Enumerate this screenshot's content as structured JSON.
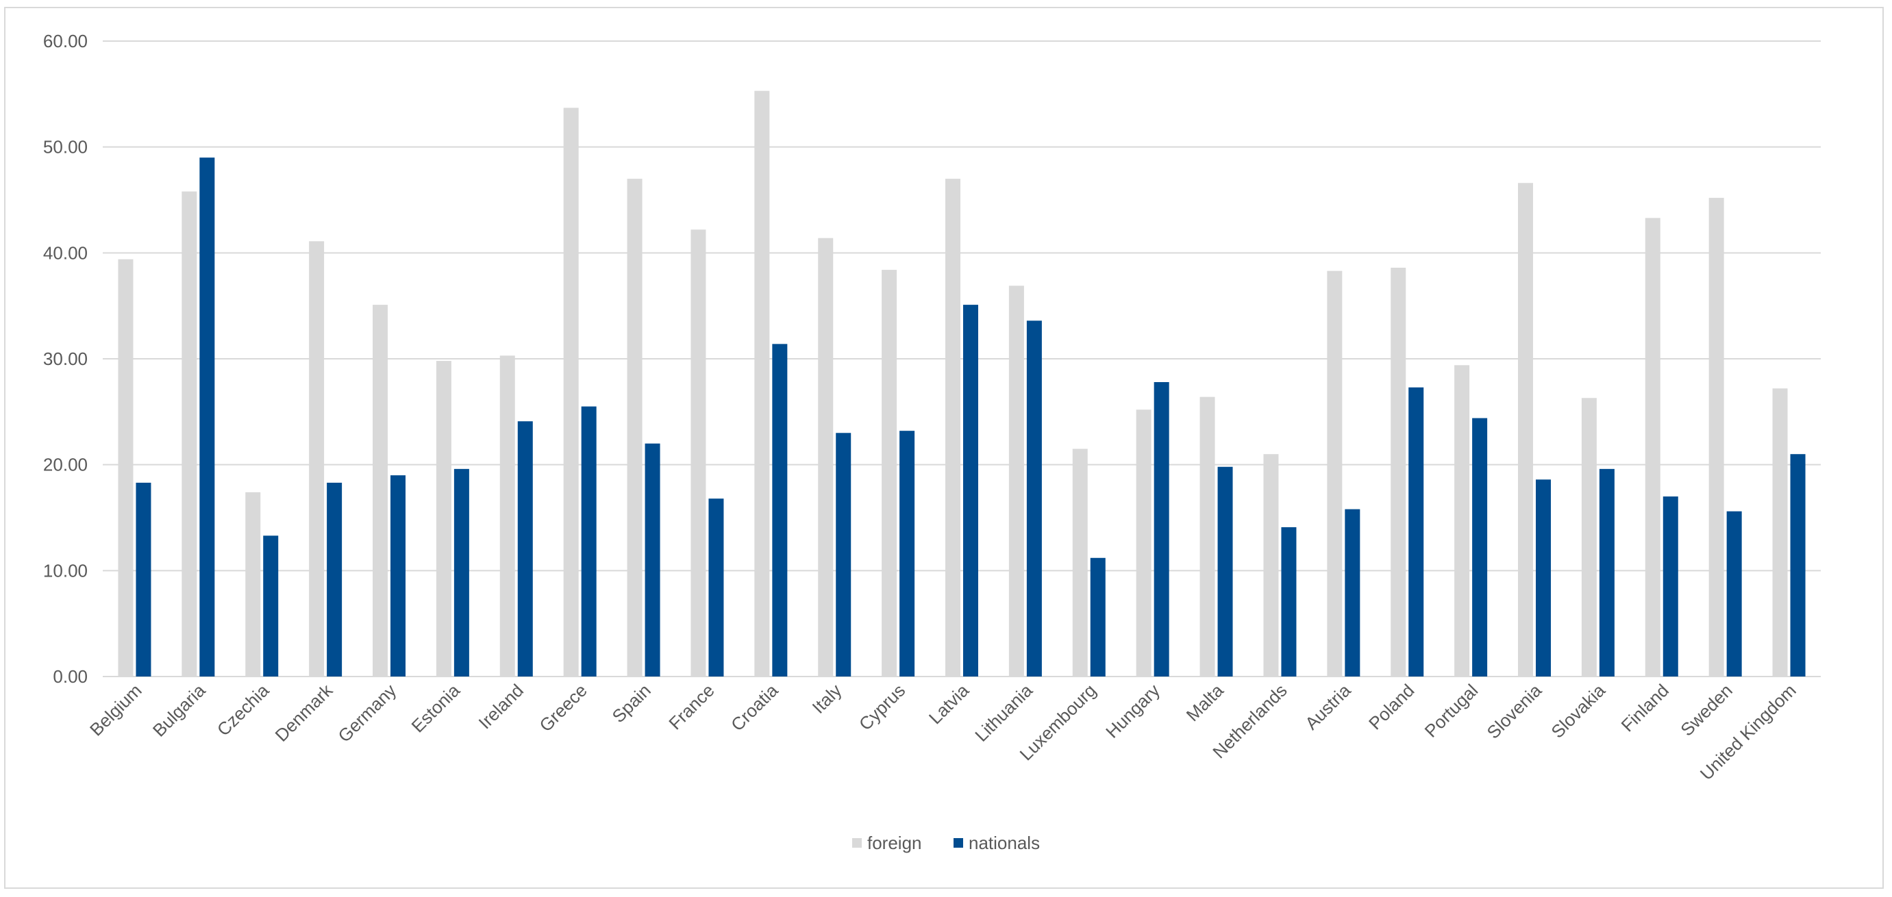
{
  "chart_data": {
    "type": "bar",
    "categories": [
      "Belgium",
      "Bulgaria",
      "Czechia",
      "Denmark",
      "Germany",
      "Estonia",
      "Ireland",
      "Greece",
      "Spain",
      "France",
      "Croatia",
      "Italy",
      "Cyprus",
      "Latvia",
      "Lithuania",
      "Luxembourg",
      "Hungary",
      "Malta",
      "Netherlands",
      "Austria",
      "Poland",
      "Portugal",
      "Slovenia",
      "Slovakia",
      "Finland",
      "Sweden",
      "United Kingdom"
    ],
    "series": [
      {
        "name": "foreign",
        "color": "#d9d9d9",
        "values": [
          39.4,
          45.8,
          17.4,
          41.1,
          35.1,
          29.8,
          30.3,
          53.7,
          47.0,
          42.2,
          55.3,
          41.4,
          38.4,
          47.0,
          36.9,
          21.5,
          25.2,
          26.4,
          21.0,
          38.3,
          38.6,
          29.4,
          46.6,
          26.3,
          43.3,
          45.2,
          27.2
        ]
      },
      {
        "name": "nationals",
        "color": "#004c8f",
        "values": [
          18.3,
          49.0,
          13.3,
          18.3,
          19.0,
          19.6,
          24.1,
          25.5,
          22.0,
          16.8,
          31.4,
          23.0,
          23.2,
          35.1,
          33.6,
          11.2,
          27.8,
          19.8,
          14.1,
          15.8,
          27.3,
          24.4,
          18.6,
          19.6,
          17.0,
          15.6,
          21.0
        ]
      }
    ],
    "y_ticks": [
      "0.00",
      "10.00",
      "20.00",
      "30.00",
      "40.00",
      "50.00",
      "60.00"
    ],
    "ylim": [
      0,
      60
    ],
    "title": "",
    "xlabel": "",
    "ylabel": "",
    "grid": true,
    "legend_position": "bottom"
  }
}
